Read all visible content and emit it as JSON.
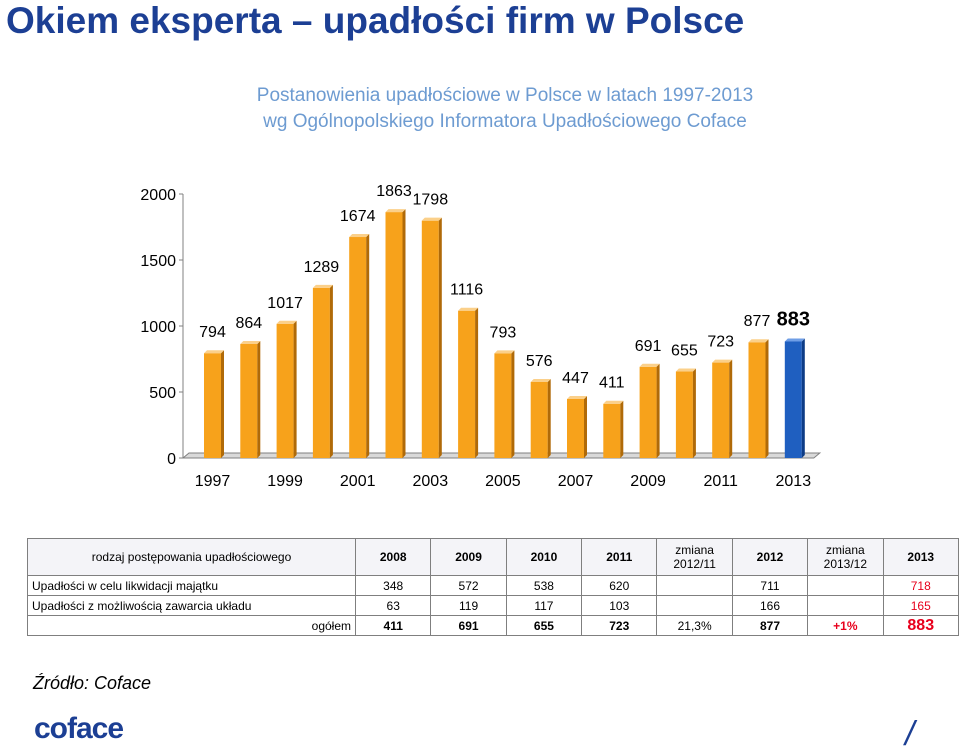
{
  "title": "Okiem eksperta – upadłości firm w Polsce",
  "subtitle_line1": "Postanowienia upadłościowe w Polsce w latach 1997-2013",
  "subtitle_line2": "wg Ogólnopolskiego Informatora Upadłościowego Coface",
  "colors": {
    "bar": "#f7a21b",
    "bar_highlight": "#1f5fc0",
    "title": "#1c3f94",
    "subtitle": "#6d9bd1"
  },
  "chart_data": {
    "type": "bar",
    "categories": [
      "1997",
      "1998",
      "1999",
      "2000",
      "2001",
      "2002",
      "2003",
      "2004",
      "2005",
      "2006",
      "2007",
      "2008",
      "2009",
      "2010",
      "2011",
      "2012",
      "2013"
    ],
    "values": [
      794,
      864,
      1017,
      1289,
      1674,
      1863,
      1798,
      1116,
      793,
      576,
      447,
      411,
      691,
      655,
      723,
      877,
      883
    ],
    "x_tick_labels": [
      "1997",
      "1999",
      "2001",
      "2003",
      "2005",
      "2007",
      "2009",
      "2011",
      "2013"
    ],
    "y_ticks": [
      0,
      500,
      1000,
      1500,
      2000
    ],
    "ylim": [
      0,
      2000
    ],
    "highlight_category": "2013",
    "grid": false
  },
  "table": {
    "headers": [
      "rodzaj postępowania upadłościowego",
      "2008",
      "2009",
      "2010",
      "2011",
      "zmiana 2012/11",
      "2012",
      "zmiana 2013/12",
      "2013"
    ],
    "rows": [
      {
        "label": "Upadłości w celu likwidacji majątku",
        "v2008": "348",
        "v2009": "572",
        "v2010": "538",
        "v2011": "620",
        "ch1211": "",
        "v2012": "711",
        "ch1312": "",
        "v2013": "718"
      },
      {
        "label": "Upadłości z możliwością zawarcia układu",
        "v2008": "63",
        "v2009": "119",
        "v2010": "117",
        "v2011": "103",
        "ch1211": "",
        "v2012": "166",
        "ch1312": "",
        "v2013": "165"
      }
    ],
    "total": {
      "label": "ogółem",
      "v2008": "411",
      "v2009": "691",
      "v2010": "655",
      "v2011": "723",
      "ch1211": "21,3%",
      "v2012": "877",
      "ch1312": "+1%",
      "v2013": "883"
    }
  },
  "source": "Źródło: Coface",
  "logo_text": "coface",
  "slash": "/"
}
